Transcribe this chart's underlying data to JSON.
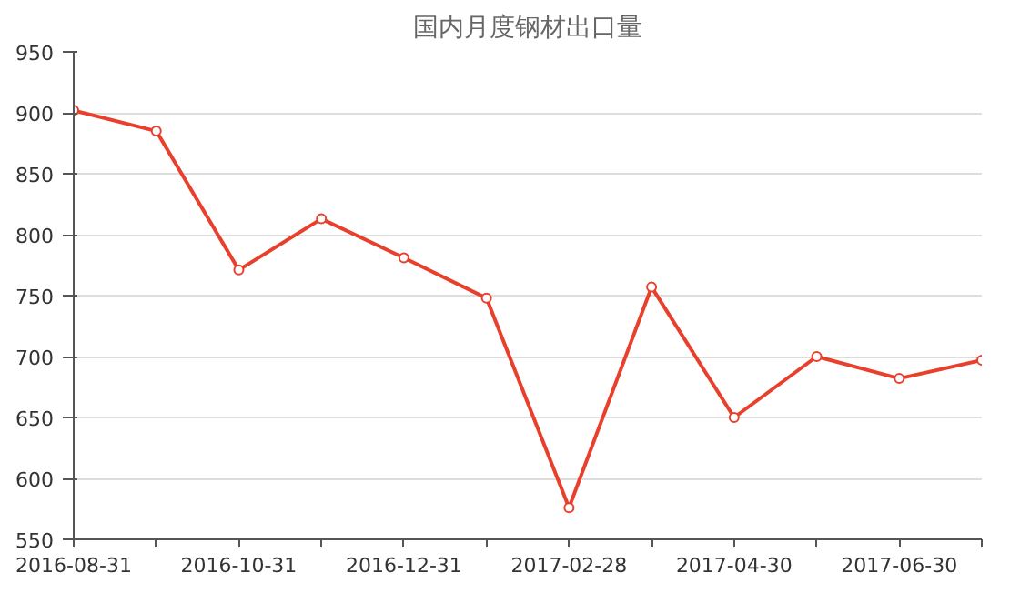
{
  "chart_data": {
    "type": "line",
    "title": "国内月度钢材出口量",
    "categories": [
      "2016-08-31",
      null,
      "2016-10-31",
      null,
      "2016-12-31",
      null,
      "2017-02-28",
      null,
      "2017-04-30",
      null,
      "2017-06-30",
      null
    ],
    "series": [
      {
        "color": "#e8402c",
        "values": [
          902,
          885,
          771,
          813,
          781,
          748,
          576,
          757,
          650,
          700,
          682,
          697
        ]
      }
    ],
    "ylim": [
      550,
      950
    ],
    "yticks": [
      550,
      600,
      650,
      700,
      750,
      800,
      850,
      900,
      950
    ],
    "grid": "y",
    "marker": "circle",
    "line_style": "solid"
  }
}
